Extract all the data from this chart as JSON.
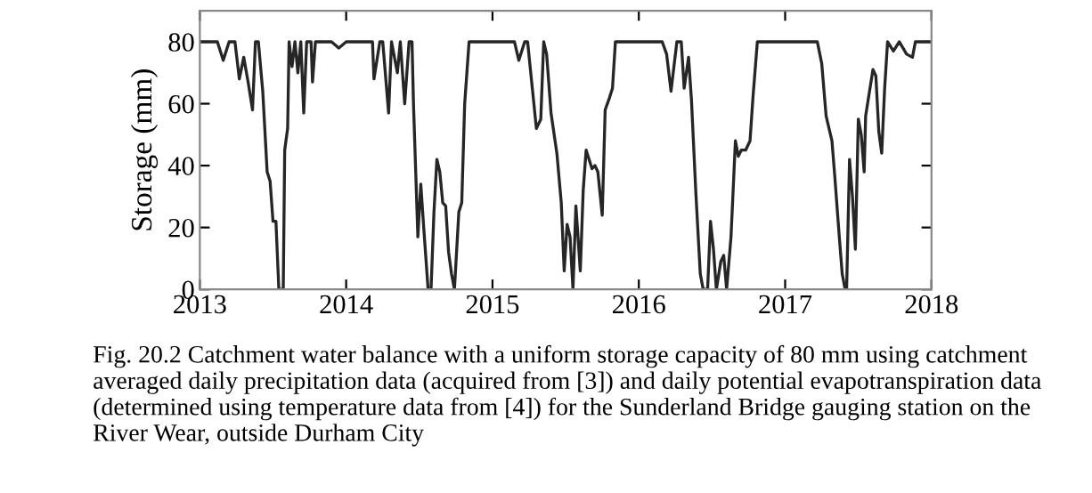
{
  "chart_data": {
    "type": "line",
    "ylabel": "Storage (mm)",
    "xlim": [
      2013,
      2018
    ],
    "ylim": [
      0,
      90
    ],
    "xticks": [
      2013,
      2014,
      2015,
      2016,
      2017,
      2018
    ],
    "yticks": [
      0,
      20,
      40,
      60,
      80
    ],
    "grid": false,
    "marker": "none",
    "line_style": "solid",
    "series": [
      {
        "color": "#262626",
        "x": [
          2013.0,
          2013.12,
          2013.16,
          2013.2,
          2013.24,
          2013.27,
          2013.3,
          2013.33,
          2013.36,
          2013.38,
          2013.4,
          2013.43,
          2013.46,
          2013.48,
          2013.5,
          2013.52,
          2013.54,
          2013.57,
          2013.58,
          2013.6,
          2013.61,
          2013.63,
          2013.65,
          2013.67,
          2013.69,
          2013.71,
          2013.73,
          2013.76,
          2013.77,
          2013.79,
          2013.9,
          2013.95,
          2014.0,
          2014.18,
          2014.19,
          2014.23,
          2014.25,
          2014.29,
          2014.31,
          2014.35,
          2014.37,
          2014.4,
          2014.43,
          2014.45,
          2014.46,
          2014.49,
          2014.51,
          2014.53,
          2014.56,
          2014.58,
          2014.6,
          2014.62,
          2014.64,
          2014.66,
          2014.68,
          2014.7,
          2014.72,
          2014.74,
          2014.77,
          2014.79,
          2014.81,
          2014.84,
          2014.86,
          2015.0,
          2015.15,
          2015.18,
          2015.22,
          2015.24,
          2015.27,
          2015.3,
          2015.33,
          2015.35,
          2015.37,
          2015.4,
          2015.44,
          2015.47,
          2015.49,
          2015.51,
          2015.53,
          2015.55,
          2015.57,
          2015.6,
          2015.62,
          2015.64,
          2015.68,
          2015.7,
          2015.72,
          2015.75,
          2015.77,
          2015.8,
          2015.82,
          2015.84,
          2016.0,
          2016.16,
          2016.19,
          2016.22,
          2016.26,
          2016.29,
          2016.31,
          2016.34,
          2016.36,
          2016.39,
          2016.42,
          2016.44,
          2016.47,
          2016.49,
          2016.51,
          2016.53,
          2016.56,
          2016.58,
          2016.6,
          2016.63,
          2016.66,
          2016.68,
          2016.7,
          2016.73,
          2016.76,
          2016.78,
          2016.81,
          2017.0,
          2017.22,
          2017.25,
          2017.28,
          2017.32,
          2017.34,
          2017.37,
          2017.39,
          2017.41,
          2017.42,
          2017.44,
          2017.46,
          2017.48,
          2017.5,
          2017.52,
          2017.54,
          2017.55,
          2017.57,
          2017.6,
          2017.62,
          2017.64,
          2017.66,
          2017.68,
          2017.7,
          2017.74,
          2017.78,
          2017.83,
          2017.87,
          2017.89,
          2018.0
        ],
        "values": [
          80,
          80,
          74,
          80,
          80,
          68,
          75,
          67,
          58,
          80,
          80,
          64,
          38,
          35,
          22,
          22,
          0,
          0,
          45,
          52,
          80,
          72,
          80,
          70,
          80,
          57,
          80,
          80,
          67,
          80,
          80,
          78,
          80,
          80,
          68,
          80,
          80,
          57,
          80,
          70,
          80,
          60,
          80,
          80,
          60,
          17,
          34,
          20,
          0,
          0,
          25,
          42,
          38,
          28,
          27,
          12,
          5,
          0,
          25,
          28,
          60,
          80,
          80,
          80,
          80,
          74,
          80,
          80,
          66,
          52,
          55,
          80,
          76,
          57,
          44,
          28,
          6,
          21,
          17,
          0,
          27,
          6,
          32,
          45,
          39,
          40,
          38,
          24,
          58,
          62,
          65,
          80,
          80,
          80,
          76,
          64,
          80,
          80,
          65,
          75,
          61,
          31,
          5,
          0,
          0,
          22,
          13,
          0,
          9,
          11,
          0,
          17,
          48,
          43,
          45,
          45,
          48,
          62,
          80,
          80,
          80,
          73,
          56,
          48,
          36,
          17,
          5,
          0,
          0,
          42,
          30,
          13,
          55,
          50,
          38,
          56,
          62,
          71,
          69,
          51,
          44,
          65,
          80,
          77,
          80,
          76,
          75,
          80,
          80
        ]
      }
    ],
    "annotations": [
      "Fig. 20.2 Catchment water balance with a uniform storage capacity of 80 mm using catchment averaged daily precipitation data (acquired from [3]) and daily potential evapotranspiration data (determined using temperature data from [4]) for the Sunderland Bridge gauging station on the River Wear, outside Durham City"
    ]
  }
}
